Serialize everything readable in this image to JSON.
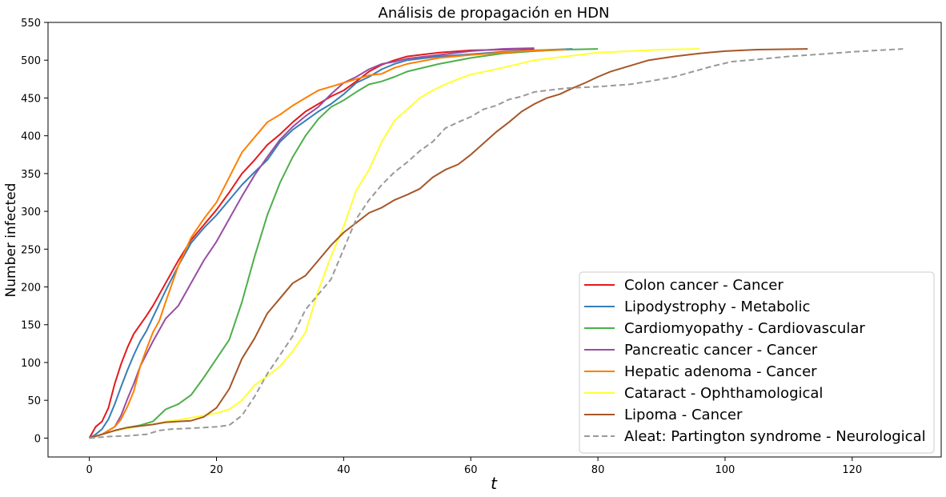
{
  "chart_data": {
    "type": "line",
    "title": "Análisis de propagación en HDN",
    "xlabel": "t",
    "ylabel": "Number infected",
    "xlim": [
      -6.5,
      134
    ],
    "ylim": [
      -25,
      550
    ],
    "xticks": [
      0,
      20,
      40,
      60,
      80,
      100,
      120
    ],
    "yticks": [
      0,
      50,
      100,
      150,
      200,
      250,
      300,
      350,
      400,
      450,
      500,
      550
    ],
    "grid": false,
    "legend_position": "lower-right",
    "series": [
      {
        "name": "Colon cancer - Cancer",
        "color": "#e41a1c",
        "dashed": false,
        "points": [
          [
            0,
            0
          ],
          [
            1,
            15
          ],
          [
            2,
            22
          ],
          [
            3,
            40
          ],
          [
            4,
            72
          ],
          [
            5,
            98
          ],
          [
            6,
            120
          ],
          [
            7,
            138
          ],
          [
            8,
            150
          ],
          [
            9,
            162
          ],
          [
            10,
            175
          ],
          [
            12,
            205
          ],
          [
            14,
            235
          ],
          [
            16,
            262
          ],
          [
            18,
            282
          ],
          [
            20,
            302
          ],
          [
            22,
            325
          ],
          [
            24,
            350
          ],
          [
            26,
            368
          ],
          [
            28,
            388
          ],
          [
            30,
            402
          ],
          [
            32,
            418
          ],
          [
            34,
            432
          ],
          [
            36,
            442
          ],
          [
            38,
            452
          ],
          [
            40,
            460
          ],
          [
            42,
            472
          ],
          [
            44,
            485
          ],
          [
            46,
            494
          ],
          [
            48,
            500
          ],
          [
            50,
            505
          ],
          [
            55,
            510
          ],
          [
            60,
            513
          ],
          [
            65,
            514
          ],
          [
            70,
            515
          ]
        ]
      },
      {
        "name": "Lipodystrophy - Metabolic",
        "color": "#377eb8",
        "dashed": false,
        "points": [
          [
            0,
            0
          ],
          [
            1,
            5
          ],
          [
            2,
            12
          ],
          [
            3,
            25
          ],
          [
            4,
            45
          ],
          [
            5,
            68
          ],
          [
            6,
            90
          ],
          [
            7,
            110
          ],
          [
            8,
            128
          ],
          [
            9,
            142
          ],
          [
            10,
            160
          ],
          [
            12,
            195
          ],
          [
            14,
            228
          ],
          [
            16,
            258
          ],
          [
            18,
            278
          ],
          [
            20,
            295
          ],
          [
            22,
            315
          ],
          [
            24,
            335
          ],
          [
            26,
            352
          ],
          [
            28,
            368
          ],
          [
            30,
            392
          ],
          [
            32,
            408
          ],
          [
            34,
            420
          ],
          [
            36,
            432
          ],
          [
            38,
            442
          ],
          [
            40,
            455
          ],
          [
            42,
            470
          ],
          [
            44,
            478
          ],
          [
            46,
            488
          ],
          [
            48,
            495
          ],
          [
            50,
            500
          ],
          [
            55,
            505
          ],
          [
            60,
            508
          ],
          [
            65,
            511
          ],
          [
            70,
            513
          ],
          [
            76,
            515
          ]
        ]
      },
      {
        "name": "Cardiomyopathy - Cardiovascular",
        "color": "#4daf4a",
        "dashed": false,
        "points": [
          [
            0,
            0
          ],
          [
            2,
            5
          ],
          [
            4,
            10
          ],
          [
            6,
            14
          ],
          [
            8,
            17
          ],
          [
            10,
            22
          ],
          [
            12,
            38
          ],
          [
            14,
            45
          ],
          [
            16,
            57
          ],
          [
            18,
            80
          ],
          [
            20,
            105
          ],
          [
            22,
            130
          ],
          [
            24,
            180
          ],
          [
            26,
            240
          ],
          [
            28,
            295
          ],
          [
            30,
            338
          ],
          [
            32,
            372
          ],
          [
            34,
            400
          ],
          [
            36,
            422
          ],
          [
            38,
            438
          ],
          [
            40,
            447
          ],
          [
            42,
            458
          ],
          [
            44,
            468
          ],
          [
            46,
            472
          ],
          [
            48,
            478
          ],
          [
            50,
            485
          ],
          [
            55,
            495
          ],
          [
            60,
            503
          ],
          [
            65,
            509
          ],
          [
            70,
            512
          ],
          [
            75,
            514
          ],
          [
            80,
            515
          ]
        ]
      },
      {
        "name": "Pancreatic cancer - Cancer",
        "color": "#984ea3",
        "dashed": false,
        "points": [
          [
            0,
            0
          ],
          [
            2,
            5
          ],
          [
            4,
            15
          ],
          [
            5,
            30
          ],
          [
            6,
            52
          ],
          [
            7,
            72
          ],
          [
            8,
            95
          ],
          [
            10,
            128
          ],
          [
            12,
            158
          ],
          [
            14,
            175
          ],
          [
            16,
            205
          ],
          [
            18,
            235
          ],
          [
            20,
            260
          ],
          [
            22,
            290
          ],
          [
            24,
            320
          ],
          [
            26,
            348
          ],
          [
            28,
            372
          ],
          [
            30,
            395
          ],
          [
            32,
            412
          ],
          [
            34,
            426
          ],
          [
            36,
            438
          ],
          [
            38,
            455
          ],
          [
            40,
            470
          ],
          [
            42,
            478
          ],
          [
            44,
            488
          ],
          [
            46,
            495
          ],
          [
            48,
            498
          ],
          [
            50,
            502
          ],
          [
            55,
            507
          ],
          [
            60,
            512
          ],
          [
            65,
            515
          ],
          [
            70,
            516
          ]
        ]
      },
      {
        "name": "Hepatic adenoma - Cancer",
        "color": "#ff7f00",
        "dashed": false,
        "points": [
          [
            0,
            0
          ],
          [
            2,
            5
          ],
          [
            4,
            15
          ],
          [
            5,
            25
          ],
          [
            6,
            42
          ],
          [
            7,
            62
          ],
          [
            8,
            95
          ],
          [
            9,
            118
          ],
          [
            10,
            140
          ],
          [
            11,
            155
          ],
          [
            12,
            180
          ],
          [
            14,
            228
          ],
          [
            16,
            265
          ],
          [
            18,
            290
          ],
          [
            20,
            312
          ],
          [
            22,
            345
          ],
          [
            24,
            378
          ],
          [
            26,
            398
          ],
          [
            28,
            418
          ],
          [
            30,
            428
          ],
          [
            32,
            440
          ],
          [
            34,
            450
          ],
          [
            36,
            460
          ],
          [
            38,
            465
          ],
          [
            40,
            470
          ],
          [
            42,
            475
          ],
          [
            44,
            480
          ],
          [
            46,
            482
          ],
          [
            48,
            490
          ],
          [
            50,
            495
          ],
          [
            55,
            503
          ],
          [
            60,
            507
          ],
          [
            65,
            510
          ],
          [
            70,
            513
          ],
          [
            75,
            514
          ]
        ]
      },
      {
        "name": "Cataract - Ophthamological",
        "color": "#ffff33",
        "dashed": false,
        "points": [
          [
            0,
            0
          ],
          [
            2,
            5
          ],
          [
            4,
            10
          ],
          [
            6,
            13
          ],
          [
            8,
            16
          ],
          [
            10,
            18
          ],
          [
            12,
            22
          ],
          [
            14,
            24
          ],
          [
            16,
            27
          ],
          [
            18,
            30
          ],
          [
            20,
            33
          ],
          [
            22,
            38
          ],
          [
            24,
            50
          ],
          [
            26,
            70
          ],
          [
            28,
            82
          ],
          [
            30,
            95
          ],
          [
            32,
            115
          ],
          [
            34,
            140
          ],
          [
            36,
            195
          ],
          [
            38,
            240
          ],
          [
            40,
            280
          ],
          [
            42,
            328
          ],
          [
            44,
            355
          ],
          [
            46,
            392
          ],
          [
            48,
            420
          ],
          [
            50,
            435
          ],
          [
            52,
            450
          ],
          [
            54,
            460
          ],
          [
            56,
            468
          ],
          [
            58,
            475
          ],
          [
            60,
            481
          ],
          [
            65,
            490
          ],
          [
            70,
            500
          ],
          [
            75,
            505
          ],
          [
            80,
            510
          ],
          [
            85,
            512
          ],
          [
            90,
            514
          ],
          [
            96,
            515
          ]
        ]
      },
      {
        "name": "Lipoma - Cancer",
        "color": "#a65628",
        "dashed": false,
        "points": [
          [
            0,
            0
          ],
          [
            2,
            5
          ],
          [
            4,
            10
          ],
          [
            6,
            14
          ],
          [
            8,
            16
          ],
          [
            10,
            18
          ],
          [
            12,
            21
          ],
          [
            14,
            22
          ],
          [
            16,
            23
          ],
          [
            18,
            28
          ],
          [
            20,
            40
          ],
          [
            22,
            65
          ],
          [
            24,
            105
          ],
          [
            26,
            132
          ],
          [
            28,
            165
          ],
          [
            30,
            185
          ],
          [
            32,
            205
          ],
          [
            34,
            215
          ],
          [
            36,
            235
          ],
          [
            38,
            255
          ],
          [
            40,
            272
          ],
          [
            42,
            285
          ],
          [
            44,
            298
          ],
          [
            46,
            305
          ],
          [
            48,
            315
          ],
          [
            50,
            322
          ],
          [
            52,
            330
          ],
          [
            54,
            345
          ],
          [
            56,
            355
          ],
          [
            58,
            362
          ],
          [
            60,
            375
          ],
          [
            62,
            390
          ],
          [
            64,
            405
          ],
          [
            66,
            418
          ],
          [
            68,
            432
          ],
          [
            70,
            442
          ],
          [
            72,
            450
          ],
          [
            74,
            455
          ],
          [
            76,
            463
          ],
          [
            78,
            470
          ],
          [
            80,
            478
          ],
          [
            82,
            485
          ],
          [
            84,
            490
          ],
          [
            86,
            495
          ],
          [
            88,
            500
          ],
          [
            92,
            505
          ],
          [
            96,
            509
          ],
          [
            100,
            512
          ],
          [
            105,
            514
          ],
          [
            113,
            515
          ]
        ]
      },
      {
        "name": "Aleat: Partington syndrome - Neurological",
        "color": "#999999",
        "dashed": true,
        "points": [
          [
            0,
            0
          ],
          [
            3,
            2
          ],
          [
            6,
            3
          ],
          [
            9,
            5
          ],
          [
            11,
            10
          ],
          [
            13,
            12
          ],
          [
            16,
            13
          ],
          [
            18,
            14
          ],
          [
            20,
            15
          ],
          [
            22,
            17
          ],
          [
            24,
            30
          ],
          [
            26,
            55
          ],
          [
            28,
            85
          ],
          [
            30,
            110
          ],
          [
            32,
            135
          ],
          [
            34,
            170
          ],
          [
            36,
            190
          ],
          [
            38,
            210
          ],
          [
            40,
            250
          ],
          [
            42,
            290
          ],
          [
            44,
            315
          ],
          [
            46,
            335
          ],
          [
            48,
            352
          ],
          [
            50,
            365
          ],
          [
            52,
            380
          ],
          [
            54,
            392
          ],
          [
            56,
            410
          ],
          [
            58,
            418
          ],
          [
            60,
            425
          ],
          [
            62,
            435
          ],
          [
            64,
            440
          ],
          [
            66,
            448
          ],
          [
            68,
            452
          ],
          [
            70,
            458
          ],
          [
            72,
            460
          ],
          [
            75,
            463
          ],
          [
            80,
            465
          ],
          [
            85,
            468
          ],
          [
            88,
            472
          ],
          [
            92,
            478
          ],
          [
            95,
            485
          ],
          [
            98,
            492
          ],
          [
            101,
            498
          ],
          [
            105,
            501
          ],
          [
            110,
            505
          ],
          [
            115,
            508
          ],
          [
            120,
            511
          ],
          [
            124,
            513
          ],
          [
            128,
            515
          ]
        ]
      }
    ]
  }
}
